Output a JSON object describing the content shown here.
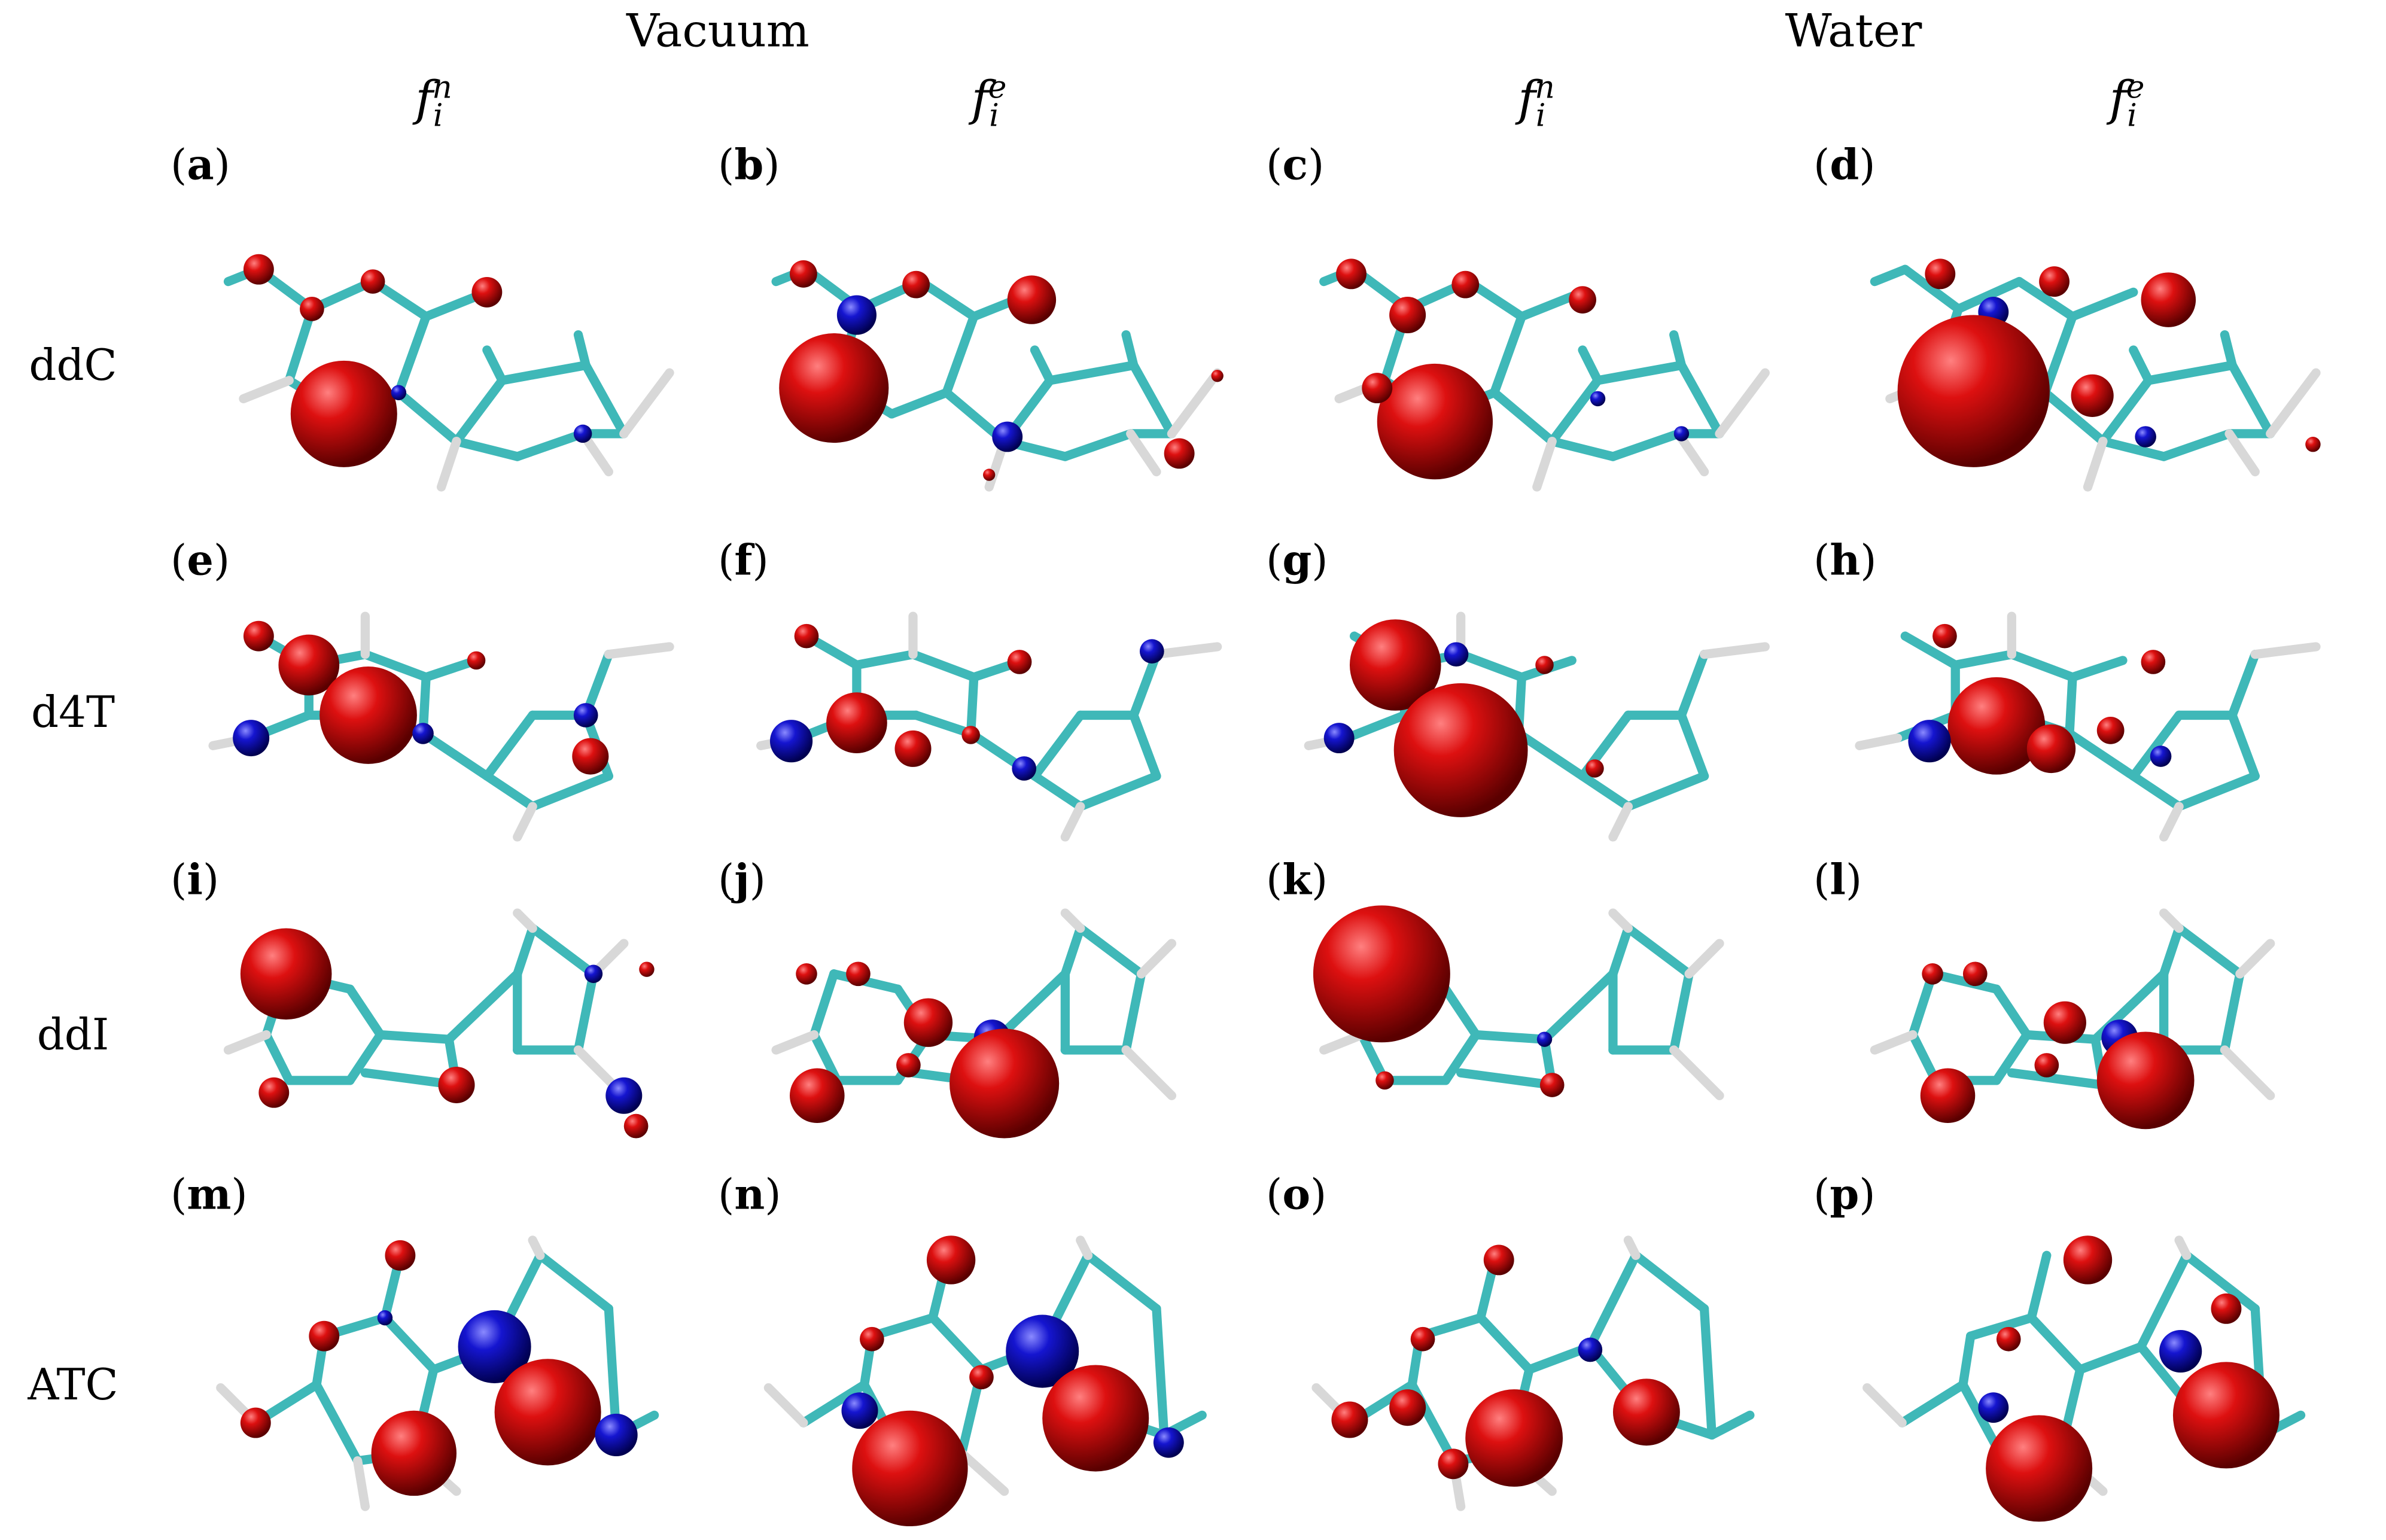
{
  "headers": [
    "Vacuum",
    "Water"
  ],
  "columns": [
    {
      "base": "f",
      "sub": "i",
      "sup": "n"
    },
    {
      "base": "f",
      "sub": "i",
      "sup": "e"
    },
    {
      "base": "f",
      "sub": "i",
      "sup": "n"
    },
    {
      "base": "f",
      "sub": "i",
      "sup": "e"
    }
  ],
  "rows": [
    "ddC",
    "d4T",
    "ddI",
    "ATC"
  ],
  "panels": [
    "a",
    "b",
    "c",
    "d",
    "e",
    "f",
    "g",
    "h",
    "i",
    "j",
    "k",
    "l",
    "m",
    "n",
    "o",
    "p"
  ],
  "colors": {
    "oxygen_sphere": "#cc0000",
    "nitrogen_sphere": "#1010cc",
    "carbon_bond": "#3fb8b8",
    "hydrogen_bond": "#d8d8d8"
  }
}
